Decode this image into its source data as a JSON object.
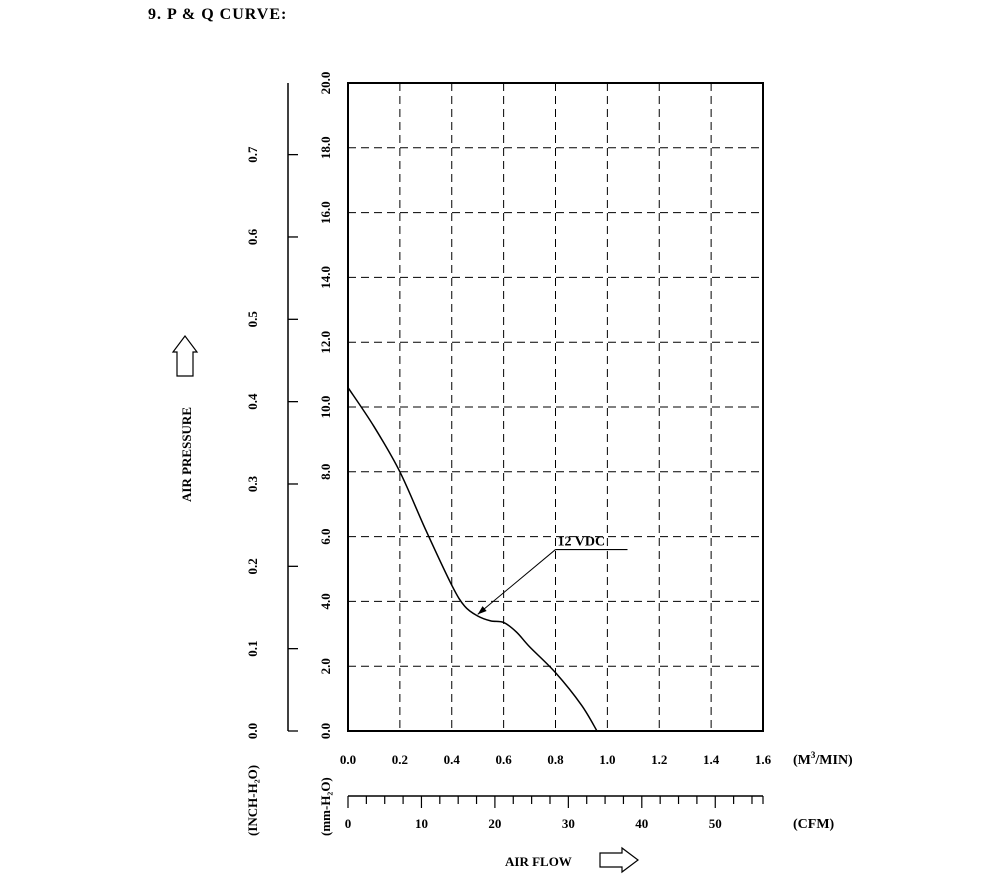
{
  "page": {
    "title": "9. P & Q CURVE:"
  },
  "chart_data": {
    "type": "line",
    "title": "",
    "xlabel": "AIR FLOW",
    "ylabel": "AIR PRESSURE",
    "x_unit": "(M³/MIN)",
    "x_unit_base": "(M",
    "x_unit_sup": "3",
    "x_unit_tail": "/MIN)",
    "x2_unit": "(CFM)",
    "y_unit_mm": "(mm-H₂O)",
    "y_unit_inch": "(INCH-H₂O)",
    "xlim": [
      0,
      1.6
    ],
    "ylim": [
      0,
      20
    ],
    "x2lim": [
      0,
      56.5
    ],
    "y2lim": [
      0,
      0.787
    ],
    "x_ticks": [
      "0.0",
      "0.2",
      "0.4",
      "0.6",
      "0.8",
      "1.0",
      "1.2",
      "1.4",
      "1.6"
    ],
    "y_ticks": [
      "0.0",
      "2.0",
      "4.0",
      "6.0",
      "8.0",
      "10.0",
      "12.0",
      "14.0",
      "16.0",
      "18.0",
      "20.0"
    ],
    "inch_ticks": [
      "0.0",
      "0.1",
      "0.2",
      "0.3",
      "0.4",
      "0.5",
      "0.6",
      "0.7"
    ],
    "cfm_ticks": [
      "0",
      "10",
      "20",
      "30",
      "40",
      "50"
    ],
    "grid": true,
    "series": [
      {
        "name": "12 VDC",
        "x": [
          0.0,
          0.1,
          0.2,
          0.3,
          0.4,
          0.45,
          0.5,
          0.55,
          0.6,
          0.65,
          0.7,
          0.8,
          0.9,
          0.96
        ],
        "y": [
          10.6,
          9.4,
          8.0,
          6.2,
          4.5,
          3.85,
          3.55,
          3.4,
          3.35,
          3.05,
          2.6,
          1.8,
          0.8,
          0.0
        ]
      }
    ],
    "annotation": {
      "text": "12 VDC",
      "point_x": 0.5,
      "point_y": 3.6,
      "text_x": 0.8,
      "text_y": 5.6
    }
  }
}
